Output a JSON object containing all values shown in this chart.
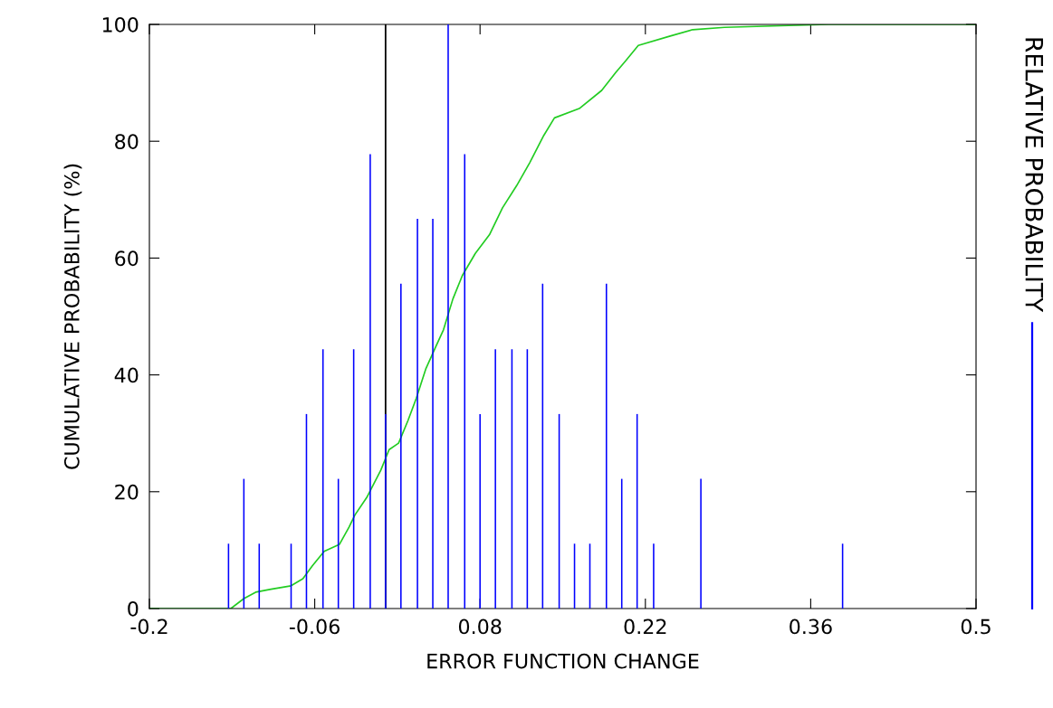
{
  "chart_data": {
    "type": "line",
    "xlabel": "ERROR FUNCTION CHANGE",
    "ylabel": "CUMULATIVE PROBABILITY (%)",
    "xlim": [
      -0.2,
      0.5
    ],
    "xticks": [
      -0.2,
      -0.06,
      0.08,
      0.22,
      0.36,
      0.5
    ],
    "ylim": [
      0,
      100
    ],
    "yticks": [
      0,
      20,
      40,
      60,
      80,
      100
    ],
    "grid": false,
    "legend": "right",
    "marker": "none",
    "line_style": "solid",
    "ref_lines": [
      {
        "axis": "x",
        "value": 0,
        "color": "#000000"
      }
    ],
    "series": [
      {
        "color": "#22cc22",
        "x": [
          -0.2,
          -0.131,
          -0.12,
          -0.11,
          -0.097,
          -0.08,
          -0.07,
          -0.062,
          -0.052,
          -0.039,
          -0.031,
          -0.026,
          -0.016,
          -0.004,
          0.003,
          0.011,
          0.019,
          0.026,
          0.034,
          0.042,
          0.049,
          0.057,
          0.065,
          0.076,
          0.088,
          0.099,
          0.111,
          0.122,
          0.134,
          0.143,
          0.164,
          0.183,
          0.195,
          0.203,
          0.214,
          0.241,
          0.26,
          0.287,
          0.375,
          0.5
        ],
        "values": [
          0,
          0,
          1.7,
          2.8,
          3.3,
          3.9,
          5.1,
          7.3,
          9.8,
          11,
          13.9,
          16,
          19,
          23.7,
          27.2,
          28.3,
          32.2,
          36,
          41,
          44.6,
          47.7,
          53,
          57,
          60.8,
          64,
          68.6,
          72.4,
          76.3,
          81,
          84,
          85.6,
          88.7,
          91.8,
          93.7,
          96.4,
          98,
          99.1,
          99.5,
          100,
          100
        ]
      },
      {
        "type": "bar",
        "name": "RELATIVE PROBABILITY",
        "color": "#0000ff",
        "x": [
          -0.133,
          -0.12,
          -0.107,
          -0.08,
          -0.067,
          -0.053,
          -0.04,
          -0.027,
          -0.013,
          0,
          0.013,
          0.027,
          0.04,
          0.053,
          0.067,
          0.08,
          0.093,
          0.107,
          0.12,
          0.133,
          0.147,
          0.16,
          0.173,
          0.187,
          0.2,
          0.213,
          0.227,
          0.267,
          0.387
        ],
        "values": [
          11.1,
          22.2,
          11.1,
          11.1,
          33.3,
          44.4,
          22.2,
          44.4,
          77.8,
          33.3,
          55.6,
          66.7,
          66.7,
          100,
          77.8,
          33.3,
          44.4,
          44.4,
          44.4,
          55.6,
          33.3,
          11.1,
          11.1,
          55.6,
          22.2,
          33.3,
          11.1,
          22.2,
          11.1
        ]
      }
    ]
  }
}
